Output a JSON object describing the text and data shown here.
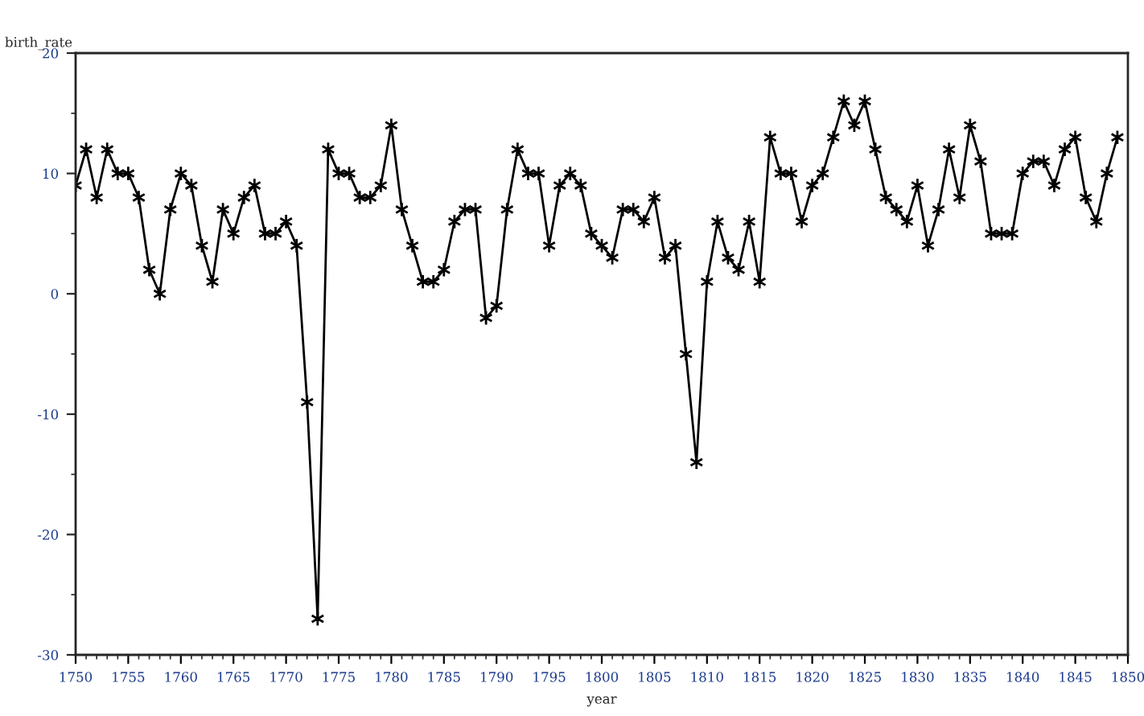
{
  "chart_data": {
    "type": "line",
    "xlabel": "year",
    "ylabel": "birth_rate",
    "x": [
      1750,
      1751,
      1752,
      1753,
      1754,
      1755,
      1756,
      1757,
      1758,
      1759,
      1760,
      1761,
      1762,
      1763,
      1764,
      1765,
      1766,
      1767,
      1768,
      1769,
      1770,
      1771,
      1772,
      1773,
      1774,
      1775,
      1776,
      1777,
      1778,
      1779,
      1780,
      1781,
      1782,
      1783,
      1784,
      1785,
      1786,
      1787,
      1788,
      1789,
      1790,
      1791,
      1792,
      1793,
      1794,
      1795,
      1796,
      1797,
      1798,
      1799,
      1800,
      1801,
      1802,
      1803,
      1804,
      1805,
      1806,
      1807,
      1808,
      1809,
      1810,
      1811,
      1812,
      1813,
      1814,
      1815,
      1816,
      1817,
      1818,
      1819,
      1820,
      1821,
      1822,
      1823,
      1824,
      1825,
      1826,
      1827,
      1828,
      1829,
      1830,
      1831,
      1832,
      1833,
      1834,
      1835,
      1836,
      1837,
      1838,
      1839,
      1840,
      1841,
      1842,
      1843,
      1844,
      1845,
      1846,
      1847,
      1848,
      1849
    ],
    "series": [
      {
        "color": "#000000",
        "values": [
          9,
          12,
          8,
          12,
          10,
          10,
          8,
          2,
          0,
          7,
          10,
          9,
          4,
          1,
          7,
          5,
          8,
          9,
          5,
          5,
          6,
          4,
          -9,
          -27,
          12,
          10,
          10,
          8,
          8,
          9,
          14,
          7,
          4,
          1,
          1,
          2,
          6,
          7,
          7,
          -2,
          -1,
          7,
          12,
          10,
          10,
          4,
          9,
          10,
          9,
          5,
          4,
          3,
          7,
          7,
          6,
          8,
          3,
          4,
          -5,
          -14,
          1,
          6,
          3,
          2,
          6,
          1,
          13,
          10,
          10,
          6,
          9,
          10,
          13,
          16,
          14,
          16,
          12,
          8,
          7,
          6,
          9,
          4,
          7,
          12,
          8,
          14,
          11,
          5,
          5,
          5,
          10,
          11,
          11,
          9,
          12,
          13,
          8,
          6,
          10,
          13
        ]
      }
    ],
    "xlim": [
      1750,
      1850
    ],
    "xticks": [
      1750,
      1755,
      1760,
      1765,
      1770,
      1775,
      1780,
      1785,
      1790,
      1795,
      1800,
      1805,
      1810,
      1815,
      1820,
      1825,
      1830,
      1835,
      1840,
      1845,
      1850
    ],
    "ylim": [
      -30,
      20
    ],
    "yticks": [
      -30,
      -20,
      -10,
      0,
      10,
      20
    ],
    "marker": "cross",
    "line_style": "solid",
    "grid": false,
    "legend": false
  }
}
